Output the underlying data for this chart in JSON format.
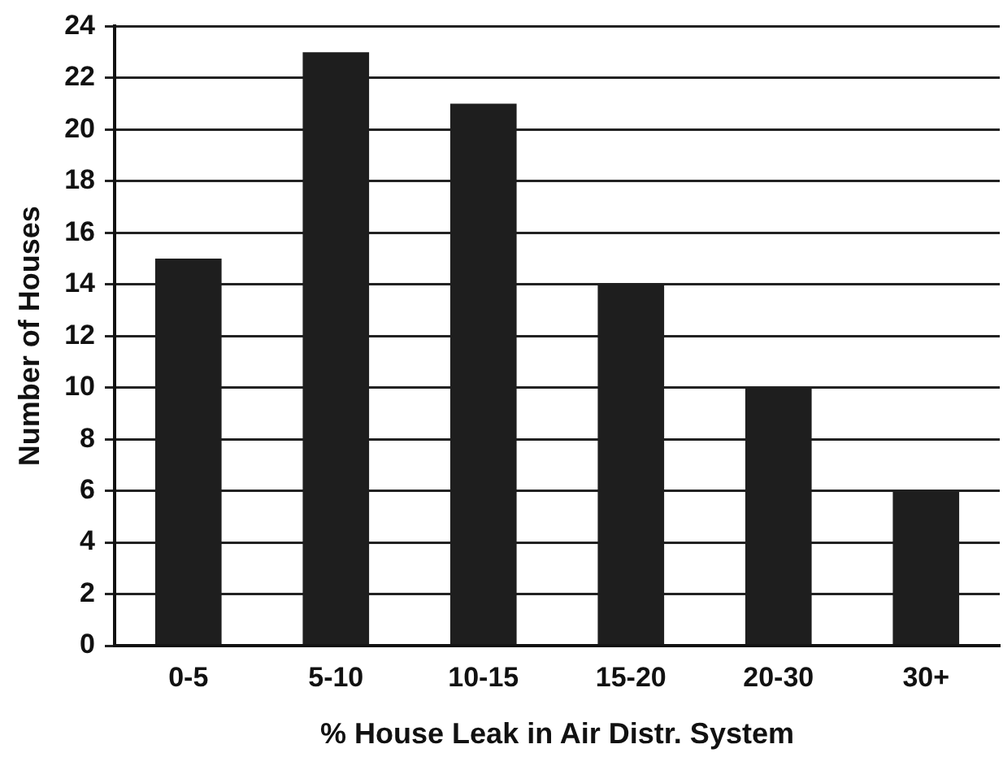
{
  "chart_data": {
    "type": "bar",
    "xlabel": "% House Leak in Air Distr. System",
    "ylabel": "Number of Houses",
    "categories": [
      "0-5",
      "5-10",
      "10-15",
      "15-20",
      "20-30",
      "30+"
    ],
    "values": [
      15,
      23,
      21,
      14,
      10,
      6
    ],
    "color": "#1e1e1e",
    "ylim": [
      0,
      24
    ],
    "yticks": [
      0,
      2,
      4,
      6,
      8,
      10,
      12,
      14,
      16,
      18,
      20,
      22,
      24
    ],
    "grid": "y",
    "legend": false
  }
}
